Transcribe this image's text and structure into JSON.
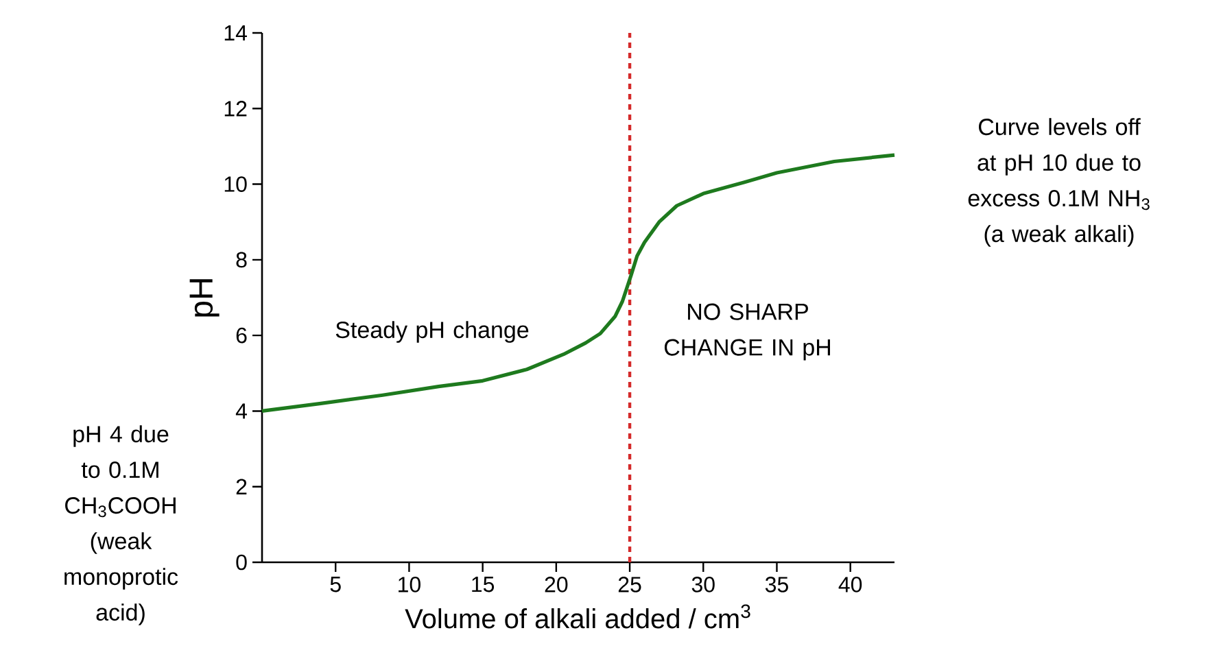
{
  "chart_data": {
    "type": "line",
    "xlabel": "Volume of alkali added / cm$^{3}$",
    "ylabel": "pH",
    "xlim": [
      0,
      43
    ],
    "ylim": [
      0,
      14
    ],
    "xticks": [
      5,
      10,
      15,
      20,
      25,
      30,
      35,
      40
    ],
    "yticks": [
      0,
      2,
      4,
      6,
      8,
      10,
      12,
      14
    ],
    "marker": "none",
    "line_style": "solid",
    "series": [
      {
        "color": "#1e7a1e",
        "x": [
          0,
          4,
          8.2,
          12,
          15,
          18,
          20.5,
          22,
          23,
          24,
          24.5,
          25.1,
          25.5,
          26,
          27,
          28.2,
          30,
          32.8,
          35,
          38.9,
          43
        ],
        "values": [
          4.0,
          4.2,
          4.42,
          4.65,
          4.8,
          5.1,
          5.5,
          5.8,
          6.05,
          6.5,
          6.9,
          7.6,
          8.1,
          8.46,
          9.0,
          9.43,
          9.75,
          10.05,
          10.3,
          10.6,
          10.77
        ]
      }
    ],
    "ref_lines": [
      {
        "axis": "x",
        "value": 25,
        "color": "#d42a2a",
        "line_style": "dotted"
      }
    ],
    "annotations": [
      "Steady pH change",
      "NO SHARP CHANGE IN pH",
      "pH 4 due to 0.1M CH$_{3}$COOH (weak monoprotic acid)",
      "Curve levels off at pH 10 due to excess 0.1M NH$_{3}$ (a weak alkali)"
    ]
  }
}
